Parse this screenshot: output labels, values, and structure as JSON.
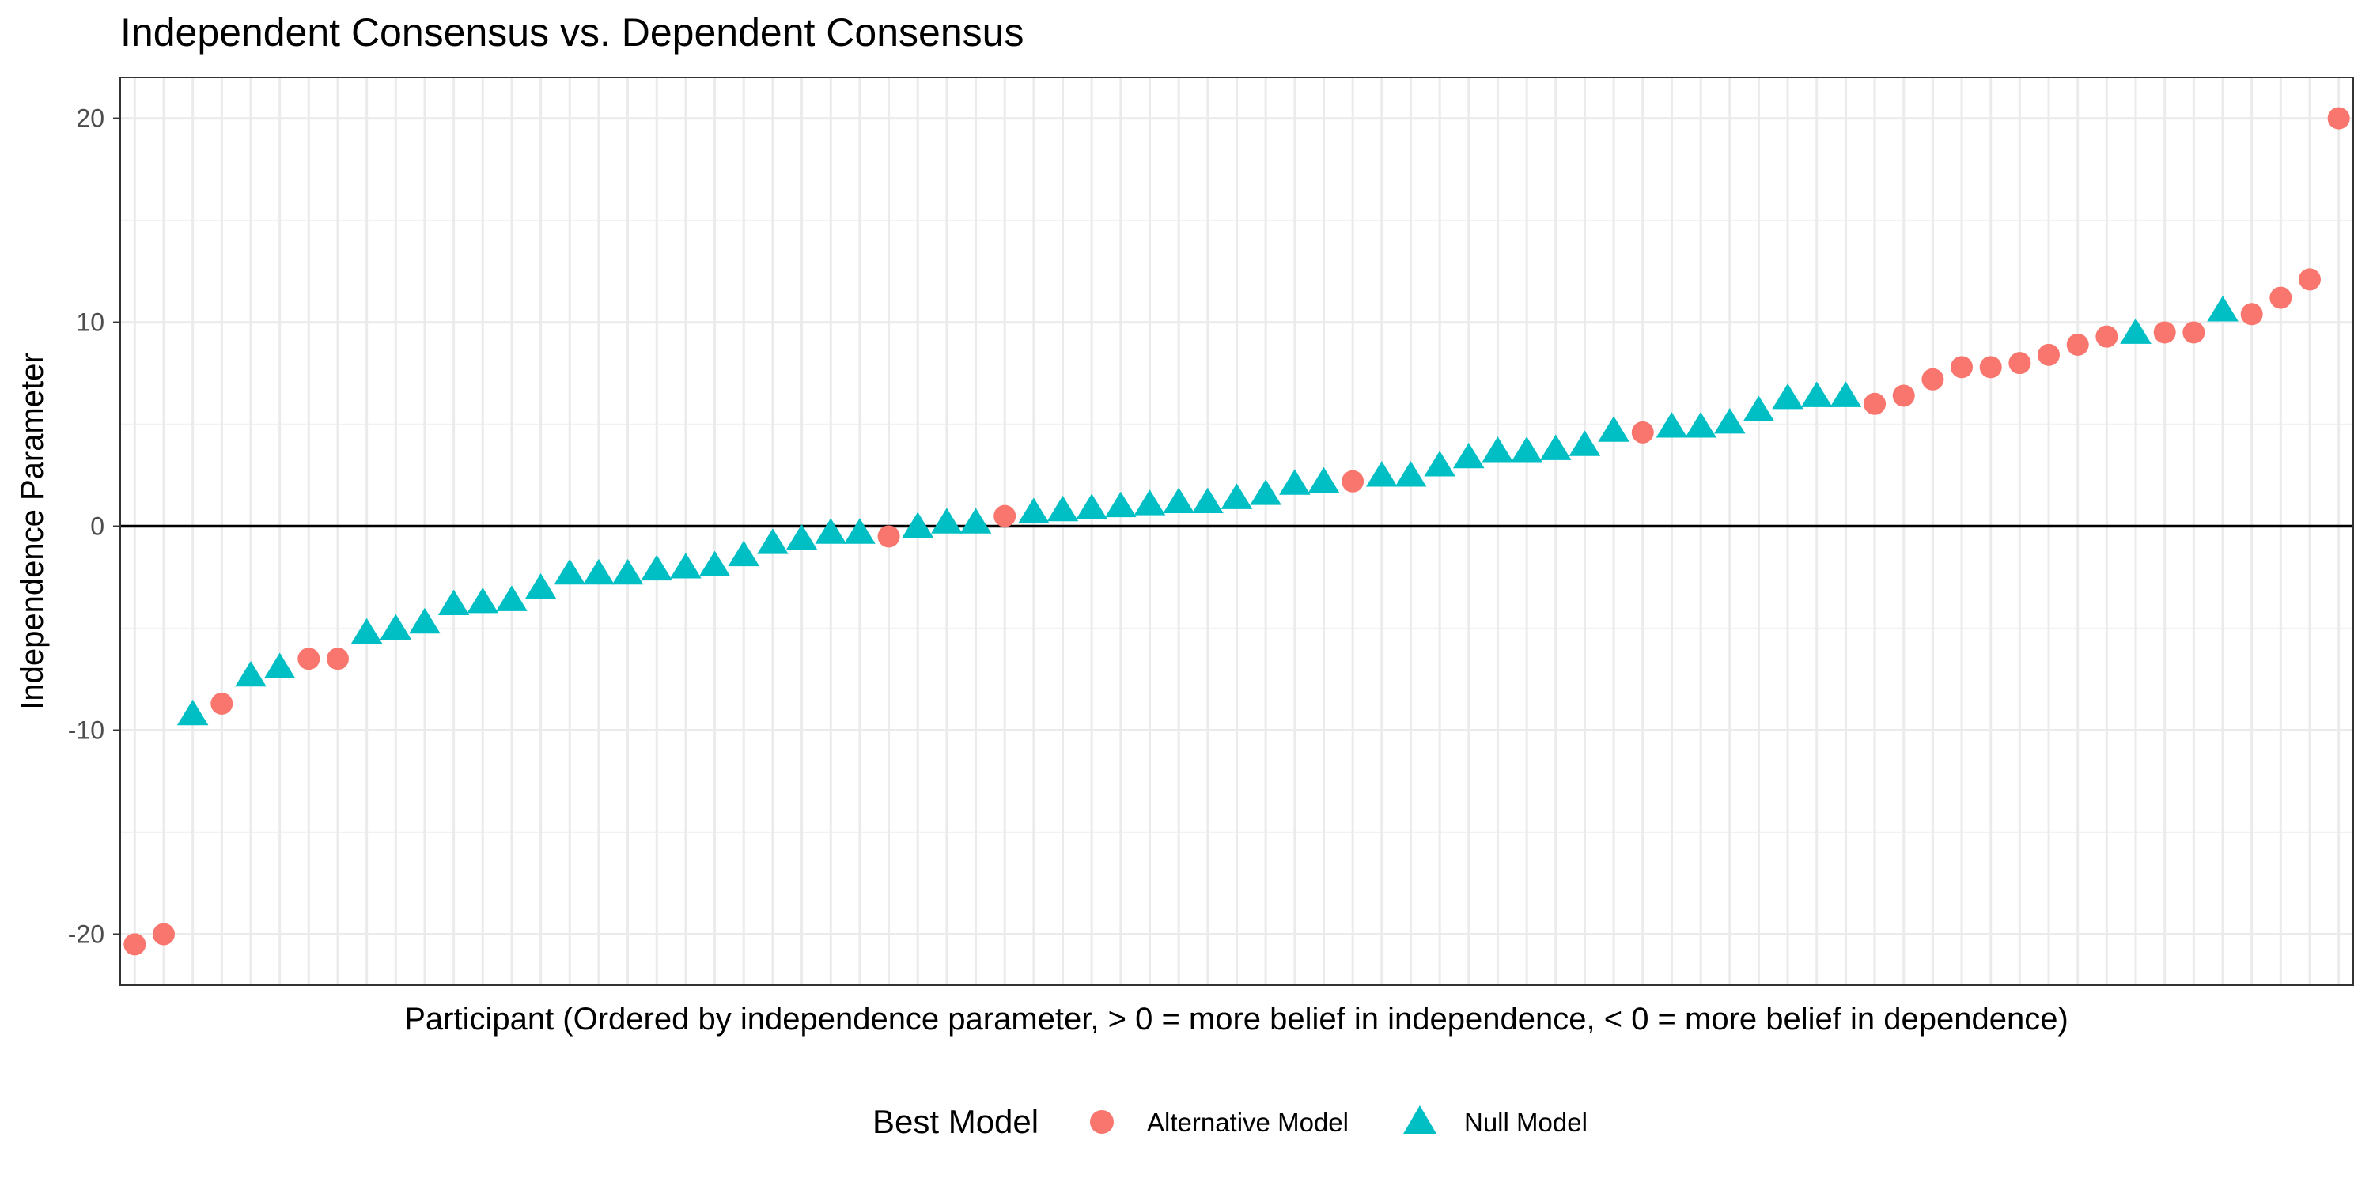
{
  "chart_data": {
    "type": "scatter",
    "title": "Independent Consensus vs. Dependent Consensus",
    "xlabel": "Participant (Ordered by independence parameter, > 0 = more belief in independence, < 0 = more belief in dependence)",
    "ylabel": "Independence Parameter",
    "xlim": [
      0.5,
      77.5
    ],
    "ylim": [
      -22.5,
      22
    ],
    "yticks": [
      "-20",
      "-10",
      "0",
      "10",
      "20"
    ],
    "ytick_values": [
      -20,
      -10,
      0,
      10,
      20
    ],
    "grid": true,
    "reference_line_y": 0,
    "legend": {
      "title": "Best Model",
      "position": "bottom",
      "entries": [
        {
          "label": "Alternative Model",
          "shape": "circle",
          "color": "#F8766D"
        },
        {
          "label": "Null Model",
          "shape": "triangle",
          "color": "#00BFC4"
        }
      ]
    },
    "series": [
      {
        "name": "Alternative Model",
        "shape": "circle",
        "color": "#F8766D",
        "x": [
          1,
          2,
          4,
          7,
          8,
          27,
          31,
          43,
          53,
          61,
          62,
          63,
          64,
          65,
          66,
          67,
          68,
          69,
          71,
          72,
          74,
          75,
          76,
          77
        ],
        "y": [
          -20.5,
          -20.0,
          -8.7,
          -6.5,
          -6.5,
          -0.5,
          0.5,
          2.2,
          4.6,
          6.0,
          6.4,
          7.2,
          7.8,
          7.8,
          8.0,
          8.4,
          8.9,
          9.3,
          9.5,
          9.5,
          10.4,
          11.2,
          12.1,
          20.0
        ]
      },
      {
        "name": "Null Model",
        "shape": "triangle",
        "color": "#00BFC4",
        "x": [
          3,
          5,
          6,
          9,
          10,
          11,
          12,
          13,
          14,
          15,
          16,
          17,
          18,
          19,
          20,
          21,
          22,
          23,
          24,
          25,
          26,
          28,
          29,
          30,
          32,
          33,
          34,
          35,
          36,
          37,
          38,
          39,
          40,
          41,
          42,
          44,
          45,
          46,
          47,
          48,
          49,
          50,
          51,
          52,
          54,
          55,
          56,
          57,
          58,
          59,
          60,
          70,
          73
        ],
        "y": [
          -9.2,
          -7.3,
          -6.9,
          -5.2,
          -5.0,
          -4.7,
          -3.8,
          -3.7,
          -3.6,
          -3.0,
          -2.3,
          -2.3,
          -2.3,
          -2.1,
          -2.0,
          -1.9,
          -1.4,
          -0.8,
          -0.6,
          -0.3,
          -0.3,
          0.0,
          0.2,
          0.2,
          0.7,
          0.8,
          0.9,
          1.0,
          1.1,
          1.2,
          1.2,
          1.4,
          1.6,
          2.1,
          2.2,
          2.5,
          2.5,
          3.0,
          3.4,
          3.7,
          3.7,
          3.8,
          4.0,
          4.7,
          4.9,
          4.9,
          5.1,
          5.7,
          6.3,
          6.4,
          6.4,
          9.5,
          10.6
        ]
      }
    ]
  }
}
